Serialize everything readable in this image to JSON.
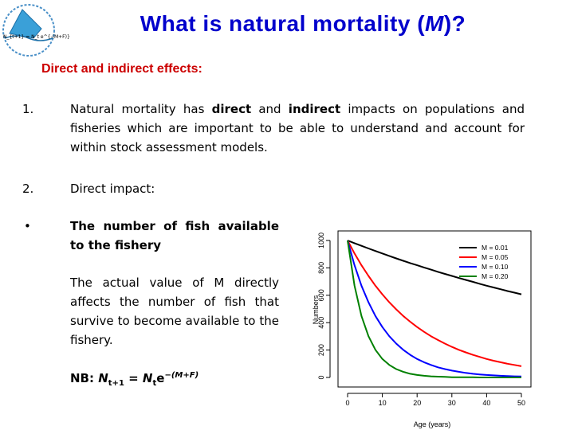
{
  "logo": {
    "formula": "N_{t+1} = N_t e^{-(M+F)}"
  },
  "slide": {
    "title_pre": "What is natural mortality (",
    "title_symbol": "M",
    "title_post": ")?",
    "subheading": "Direct and indirect effects:",
    "item1": {
      "marker": "1.",
      "t1": "Natural mortality has ",
      "b1": "direct",
      "t2": " and ",
      "b2": "indirect",
      "t3": " impacts on populations and fisheries which are important to be able to understand and account for within stock assessment models."
    },
    "item2": {
      "marker": "2.",
      "text": "Direct impact:"
    },
    "bullet": {
      "marker": "•",
      "text": "The number of fish available to the fishery"
    },
    "body": "The actual value of M directly affects the number of fish that survive to become available to the fishery.",
    "nb": {
      "label": "NB: ",
      "n1": "N",
      "sub1": "t+1",
      "eq": " = ",
      "n2": "N",
      "sub2": "t",
      "e": "e",
      "sup": "−(M+F)"
    }
  },
  "chart_data": {
    "type": "line",
    "xlabel": "Age (years)",
    "ylabel": "Numbers",
    "xlim": [
      0,
      50
    ],
    "ylim": [
      0,
      1000
    ],
    "xticks": [
      0,
      10,
      20,
      30,
      40,
      50
    ],
    "yticks": [
      0,
      200,
      400,
      600,
      800,
      1000
    ],
    "legend_position": "top-right",
    "grid": false,
    "model": "N(t) = 1000 * exp(-M * t)",
    "x": [
      0,
      2,
      4,
      6,
      8,
      10,
      12,
      14,
      16,
      18,
      20,
      22,
      24,
      26,
      28,
      30,
      32,
      34,
      36,
      38,
      40,
      42,
      44,
      46,
      48,
      50
    ],
    "series": [
      {
        "name": "M = 0.01",
        "color": "#000000",
        "values": [
          1000,
          980,
          961,
          942,
          923,
          905,
          887,
          869,
          852,
          835,
          819,
          803,
          787,
          771,
          756,
          741,
          726,
          712,
          698,
          684,
          670,
          657,
          644,
          631,
          619,
          607
        ]
      },
      {
        "name": "M = 0.05",
        "color": "#ff0000",
        "values": [
          1000,
          905,
          819,
          741,
          670,
          607,
          549,
          497,
          449,
          407,
          368,
          333,
          301,
          273,
          247,
          223,
          202,
          183,
          165,
          150,
          135,
          122,
          111,
          100,
          91,
          82
        ]
      },
      {
        "name": "M = 0.10",
        "color": "#0000ff",
        "values": [
          1000,
          819,
          670,
          549,
          449,
          368,
          301,
          247,
          202,
          165,
          135,
          111,
          91,
          74,
          61,
          50,
          41,
          33,
          27,
          22,
          18,
          15,
          12,
          10,
          8,
          7
        ]
      },
      {
        "name": "M = 0.20",
        "color": "#008000",
        "values": [
          1000,
          670,
          449,
          301,
          202,
          135,
          91,
          61,
          41,
          27,
          18,
          12,
          8,
          6,
          4,
          2,
          2,
          1,
          1,
          0,
          0,
          0,
          0,
          0,
          0,
          0
        ]
      }
    ]
  }
}
